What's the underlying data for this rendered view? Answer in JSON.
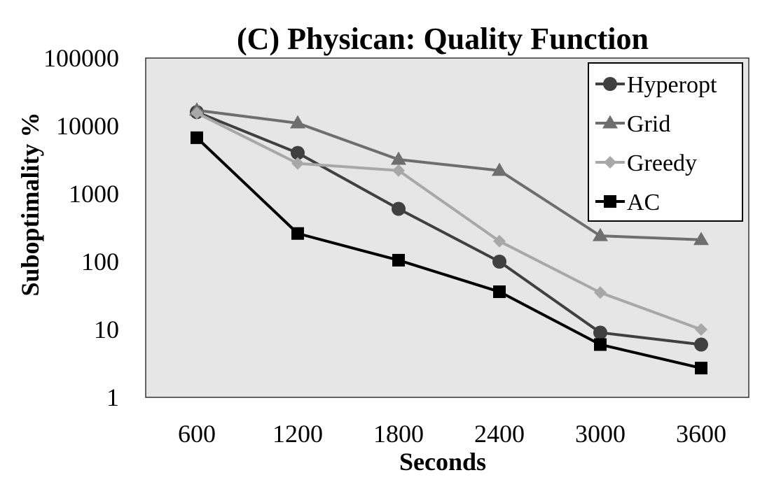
{
  "chart_data": {
    "type": "line",
    "title": "(C) Physican: Quality Function",
    "xlabel": "Seconds",
    "ylabel": "Suboptimality %",
    "yscale": "log",
    "ylim": [
      1,
      100000
    ],
    "yticks": [
      "1",
      "10",
      "100",
      "1000",
      "10000",
      "100000"
    ],
    "categories": [
      "600",
      "1200",
      "1800",
      "2400",
      "3000",
      "3600"
    ],
    "grid": false,
    "legend_position": "top-right",
    "plot_background": "#e6e6e6",
    "series": [
      {
        "name": "Hyperopt",
        "color": "#404040",
        "marker": "circle",
        "values": [
          16000,
          4000,
          600,
          100,
          9,
          6
        ]
      },
      {
        "name": "Grid",
        "color": "#6e6e6e",
        "marker": "triangle",
        "values": [
          17000,
          11000,
          3200,
          2200,
          240,
          210
        ]
      },
      {
        "name": "Greedy",
        "color": "#a8a8a8",
        "marker": "diamond",
        "values": [
          15500,
          2800,
          2200,
          200,
          35,
          10
        ]
      },
      {
        "name": "AC",
        "color": "#000000",
        "marker": "square",
        "values": [
          6700,
          260,
          105,
          36,
          6,
          2.7
        ]
      }
    ]
  }
}
